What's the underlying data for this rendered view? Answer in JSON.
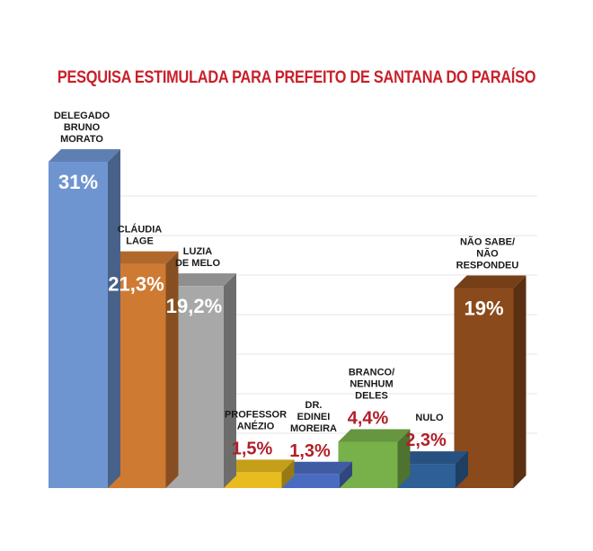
{
  "chart_data": {
    "type": "bar",
    "title": "PESQUISA ESTIMULADA PARA PREFEITO DE SANTANA DO PARAÍSO",
    "categories": [
      "DELEGADO BRUNO MORATO",
      "CLÁUDIA LAGE",
      "LUZIA DE MELO",
      "PROFESSOR ANÉZIO",
      "DR. EDINEI MOREIRA",
      "BRANCO/ NENHUM DELES",
      "NULO",
      "NÃO SABE/ NÃO RESPONDEU"
    ],
    "label_lines": [
      [
        "DELEGADO",
        "BRUNO",
        "MORATO"
      ],
      [
        "CLÁUDIA",
        "LAGE"
      ],
      [
        "LUZIA",
        "DE MELO"
      ],
      [
        "PROFESSOR",
        "ANÉZIO"
      ],
      [
        "DR.",
        "EDINEI",
        "MOREIRA"
      ],
      [
        "BRANCO/",
        "NENHUM",
        "DELES"
      ],
      [
        "NULO"
      ],
      [
        "NÃO SABE/",
        "NÃO",
        "RESPONDEU"
      ]
    ],
    "values": [
      31,
      21.3,
      19.2,
      1.5,
      1.3,
      4.4,
      2.3,
      19
    ],
    "value_labels": [
      "31%",
      "21,3%",
      "19,2%",
      "1,5%",
      "1,3%",
      "4,4%",
      "2,3%",
      "19%"
    ],
    "colors": [
      "#6f95d1",
      "#cf7a32",
      "#a8a8a8",
      "#e8bb1e",
      "#4a6cc0",
      "#78b04a",
      "#2e5f96",
      "#8a4a1c"
    ],
    "ylim": [
      0,
      31
    ],
    "grid": true
  }
}
